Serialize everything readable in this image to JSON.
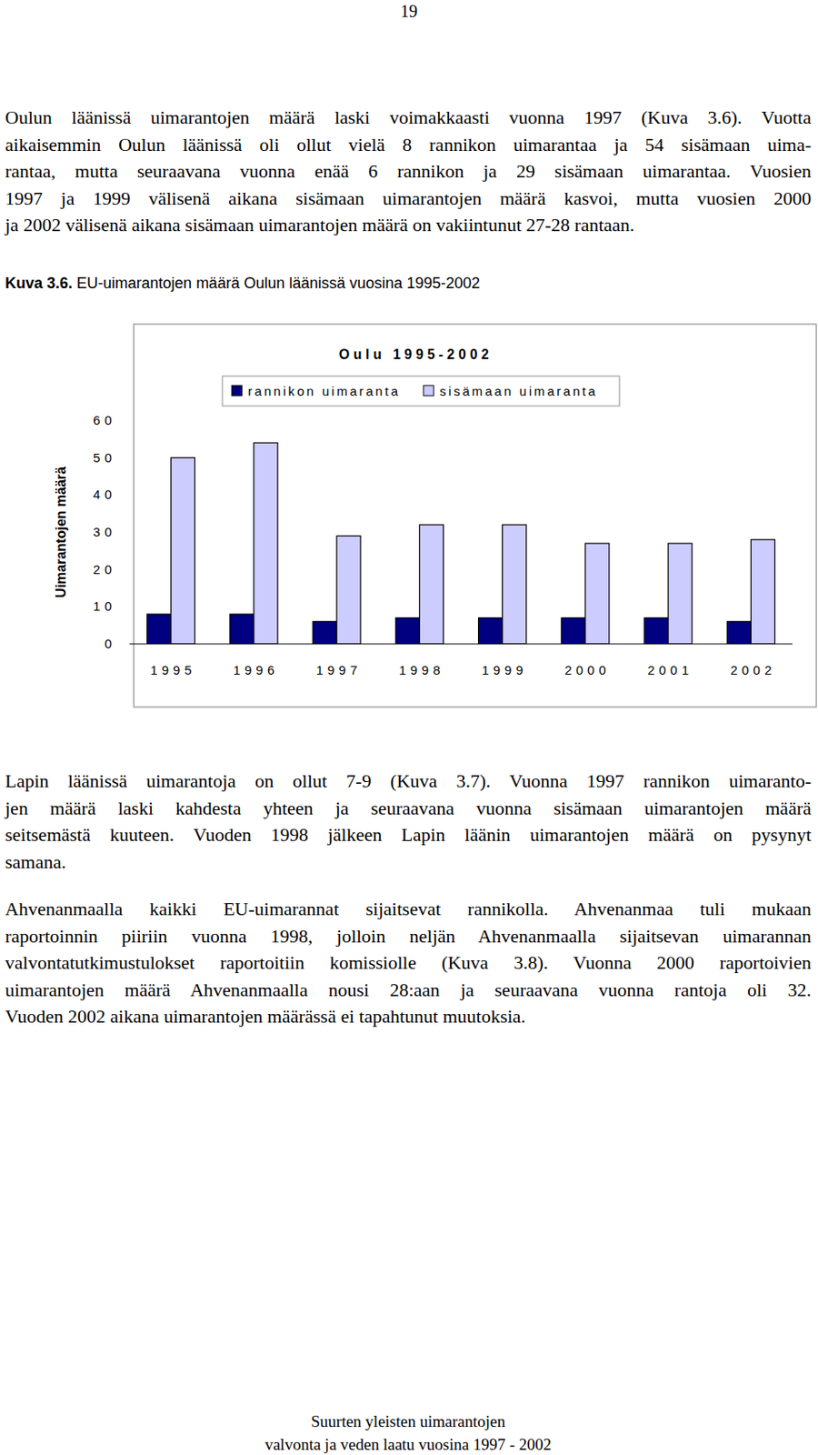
{
  "page_number": "19",
  "paragraphs": [
    {
      "lines": [
        "Oulun läänissä uimarantojen määrä laski voimakkaasti vuonna 1997 (Kuva 3.6). Vuotta",
        "aikaisemmin Oulun läänissä oli ollut vielä 8 rannikon uimarantaa ja 54 sisämaan uima-",
        "rantaa, mutta seuraavana vuonna enää 6 rannikon ja 29 sisämaan uimarantaa. Vuosien",
        "1997 ja 1999 välisenä aikana sisämaan uimarantojen määrä kasvoi, mutta vuosien 2000",
        "ja 2002 välisenä aikana sisämaan uimarantojen määrä on vakiintunut 27-28 rantaan."
      ]
    },
    {
      "lines": [
        "Lapin läänissä uimarantoja on ollut 7-9 (Kuva 3.7). Vuonna 1997 rannikon uimaranto-",
        "jen määrä laski kahdesta yhteen ja seuraavana vuonna sisämaan uimarantojen määrä",
        "seitsemästä kuuteen. Vuoden 1998 jälkeen Lapin läänin uimarantojen määrä on pysynyt",
        "samana."
      ]
    },
    {
      "lines": [
        "Ahvenanmaalla kaikki EU-uimarannat sijaitsevat rannikolla. Ahvenanmaa tuli mukaan",
        "raportoinnin piiriin vuonna 1998, jolloin neljän Ahvenanmaalla sijaitsevan uimarannan",
        "valvontatutkimustulokset raportoitiin komissiolle (Kuva 3.8). Vuonna 2000 raportoivien",
        "uimarantojen määrä Ahvenanmaalla nousi 28:aan ja seuraavana vuonna rantoja oli 32.",
        "Vuoden 2002 aikana uimarantojen määrässä ei tapahtunut muutoksia."
      ]
    }
  ],
  "caption": {
    "label": "Kuva 3.6.",
    "text": "EU-uimarantojen määrä Oulun läänissä vuosina 1995-2002"
  },
  "chart_data": {
    "type": "bar",
    "title": "Oulu 1995-2002",
    "y_label": "Uimarantojen määrä",
    "categories": [
      "1995",
      "1996",
      "1997",
      "1998",
      "1999",
      "2000",
      "2001",
      "2002"
    ],
    "series": [
      {
        "name": "rannikon uimaranta",
        "color": "#000080",
        "values": [
          8,
          8,
          6,
          7,
          7,
          7,
          7,
          6
        ]
      },
      {
        "name": "sisämaan uimaranta",
        "color": "#ccccff",
        "values": [
          50,
          54,
          29,
          32,
          32,
          27,
          27,
          28
        ]
      }
    ],
    "ylim": [
      0,
      60
    ],
    "yticks": [
      0,
      10,
      20,
      30,
      40,
      50,
      60
    ],
    "grid": false,
    "legend": "top"
  },
  "footer": {
    "lines": [
      "Suurten yleisten uimarantojen",
      "valvonta ja veden laatu vuosina 1997 - 2002"
    ]
  }
}
